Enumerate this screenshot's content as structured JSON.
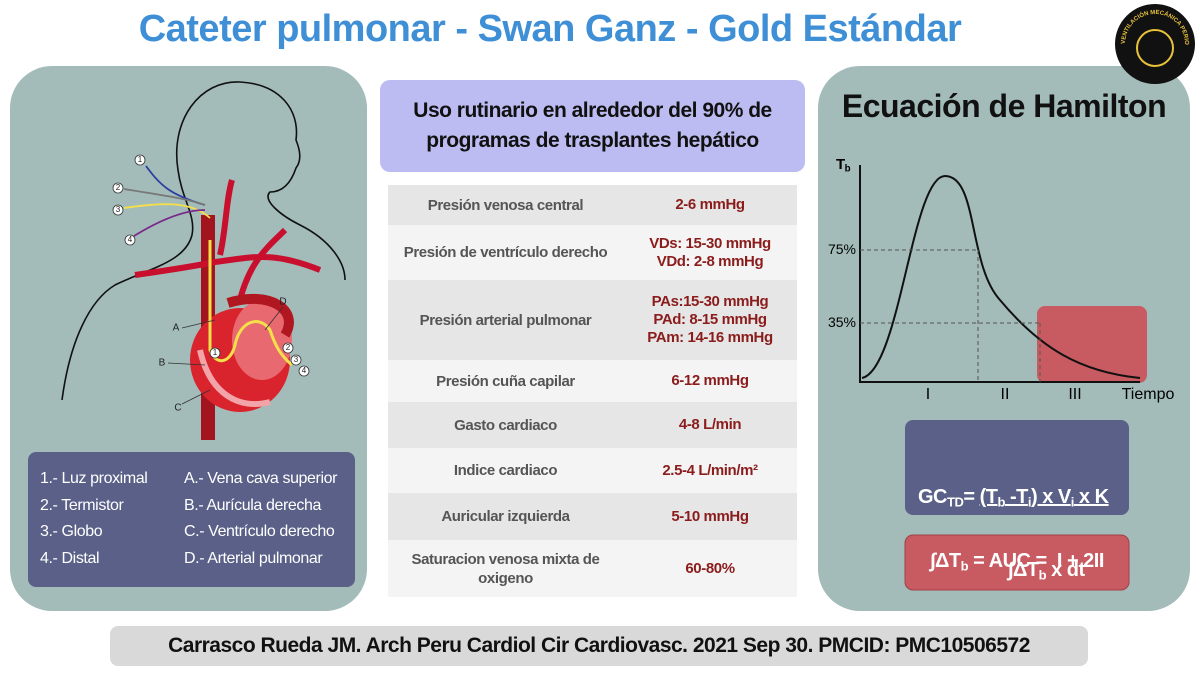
{
  "title": "Cateter pulmonar - Swan Ganz - Gold Estándar",
  "logo": "VENTILACIÓN MECÁNICA PERIOPERATORIA",
  "diagram": {
    "lines": [
      "1",
      "2",
      "3",
      "4"
    ],
    "letters": [
      "A",
      "B",
      "C",
      "D"
    ],
    "tip_labels": [
      "1",
      "2",
      "3",
      "4"
    ],
    "legend": {
      "left": [
        "1.- Luz proximal",
        "2.- Termistor",
        "3.- Globo",
        "4.- Distal"
      ],
      "right": [
        "A.- Vena cava superior",
        "B.- Aurícula derecha",
        "C.- Ventrículo derecho",
        "D.- Arterial pulmonar"
      ]
    }
  },
  "highlight": [
    "Uso rutinario en alrededor del 90% de",
    "programas de trasplantes  hepático"
  ],
  "table": {
    "rows": [
      {
        "label": [
          "Presión venosa central"
        ],
        "value": [
          "2-6 mmHg"
        ]
      },
      {
        "label": [
          "Presión de ventrículo derecho"
        ],
        "value": [
          "VDs: 15-30 mmHg",
          "VDd: 2-8 mmHg"
        ]
      },
      {
        "label": [
          "Presión arterial pulmonar"
        ],
        "value": [
          "PAs:15-30 mmHg",
          "PAd: 8-15 mmHg",
          "PAm: 14-16 mmHg"
        ]
      },
      {
        "label": [
          "Presión cuña capilar"
        ],
        "value": [
          "6-12 mmHg"
        ]
      },
      {
        "label": [
          "Gasto cardiaco"
        ],
        "value": [
          "4-8 L/min"
        ]
      },
      {
        "label": [
          "Indice cardiaco"
        ],
        "value": [
          "2.5-4 L/min/m²"
        ]
      },
      {
        "label": [
          "Auricular izquierda"
        ],
        "value": [
          "5-10 mmHg"
        ]
      },
      {
        "label": [
          "Saturacion venosa mixta de",
          "oxigeno"
        ],
        "value": [
          "60-80%"
        ]
      }
    ]
  },
  "hamilton": {
    "title": "Ecuación de Hamilton",
    "y_label": [
      "T",
      "b"
    ],
    "y_marks": [
      "75%",
      "35%"
    ],
    "x_marks": [
      "I",
      "II",
      "III",
      "Tiempo"
    ],
    "formula": {
      "lhs": [
        "GC",
        "TD",
        "= "
      ],
      "numerator": [
        "(T",
        "b",
        " -T",
        "i",
        ") x V",
        "i",
        " x K"
      ],
      "denominator": [
        "∫ΔT",
        "b",
        " x dt"
      ]
    },
    "auc": [
      "∫ΔT",
      "b",
      " = AUC =  I + 2II"
    ]
  },
  "footer": "Carrasco Rueda JM. Arch Peru Cardiol Cir Cardiovasc. 2021 Sep 30. PMCID: PMC10506572"
}
